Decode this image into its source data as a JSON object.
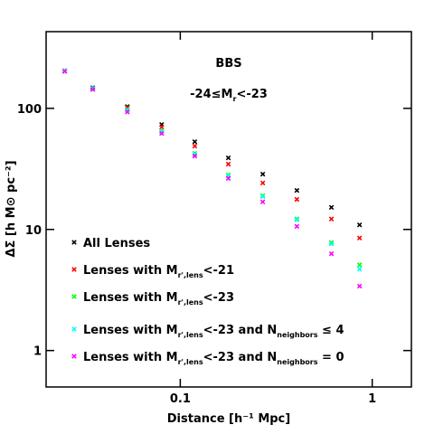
{
  "chart_data": {
    "type": "scatter",
    "title": "BBS",
    "annotation": [
      "-24≤M",
      "r",
      "<-23"
    ],
    "xlabel": "Distance [h⁻¹ Mpc]",
    "ylabel": "ΔΣ [h M⊙ pc⁻²]",
    "xscale": "log",
    "yscale": "log",
    "xlim": [
      0.02,
      1.6
    ],
    "ylim": [
      0.5,
      430
    ],
    "xticks": [
      0.1,
      1
    ],
    "yticks": [
      1,
      10,
      100
    ],
    "legend": "lower left",
    "x": [
      0.025,
      0.035,
      0.053,
      0.08,
      0.119,
      0.178,
      0.269,
      0.405,
      0.613,
      0.859
    ],
    "series": [
      {
        "name": [
          "All Lenses"
        ],
        "color": "#000000",
        "values": [
          205,
          148,
          103.5,
          73.5,
          53,
          39,
          28.6,
          21,
          15.2,
          10.9
        ]
      },
      {
        "name": [
          "Lenses with M",
          "r',lens",
          "<-21"
        ],
        "color": "#ff0000",
        "values": [
          205,
          146,
          101.7,
          69.8,
          48.8,
          34.6,
          24.2,
          17.7,
          12.2,
          8.5
        ]
      },
      {
        "name": [
          "Lenses with M",
          "r',lens",
          "<-23"
        ],
        "color": "#00ff00",
        "values": [
          205,
          146,
          98.3,
          65.2,
          42.5,
          28.2,
          19.0,
          12.2,
          7.8,
          5.1
        ]
      },
      {
        "name": [
          "Lenses with M",
          "r',lens",
          "<-23 and N",
          "neighbors",
          " ≤ 4"
        ],
        "color": "#00ffff",
        "values": [
          205,
          146,
          96.6,
          64,
          41.8,
          27.7,
          18.7,
          12.0,
          7.6,
          4.7
        ]
      },
      {
        "name": [
          "Lenses with M",
          "r',lens",
          "<-23 and N",
          "neighbors",
          " = 0"
        ],
        "color": "#ff00ff",
        "values": [
          202,
          143,
          93.4,
          62,
          40.4,
          26.4,
          16.9,
          10.6,
          6.3,
          3.4
        ]
      }
    ]
  }
}
